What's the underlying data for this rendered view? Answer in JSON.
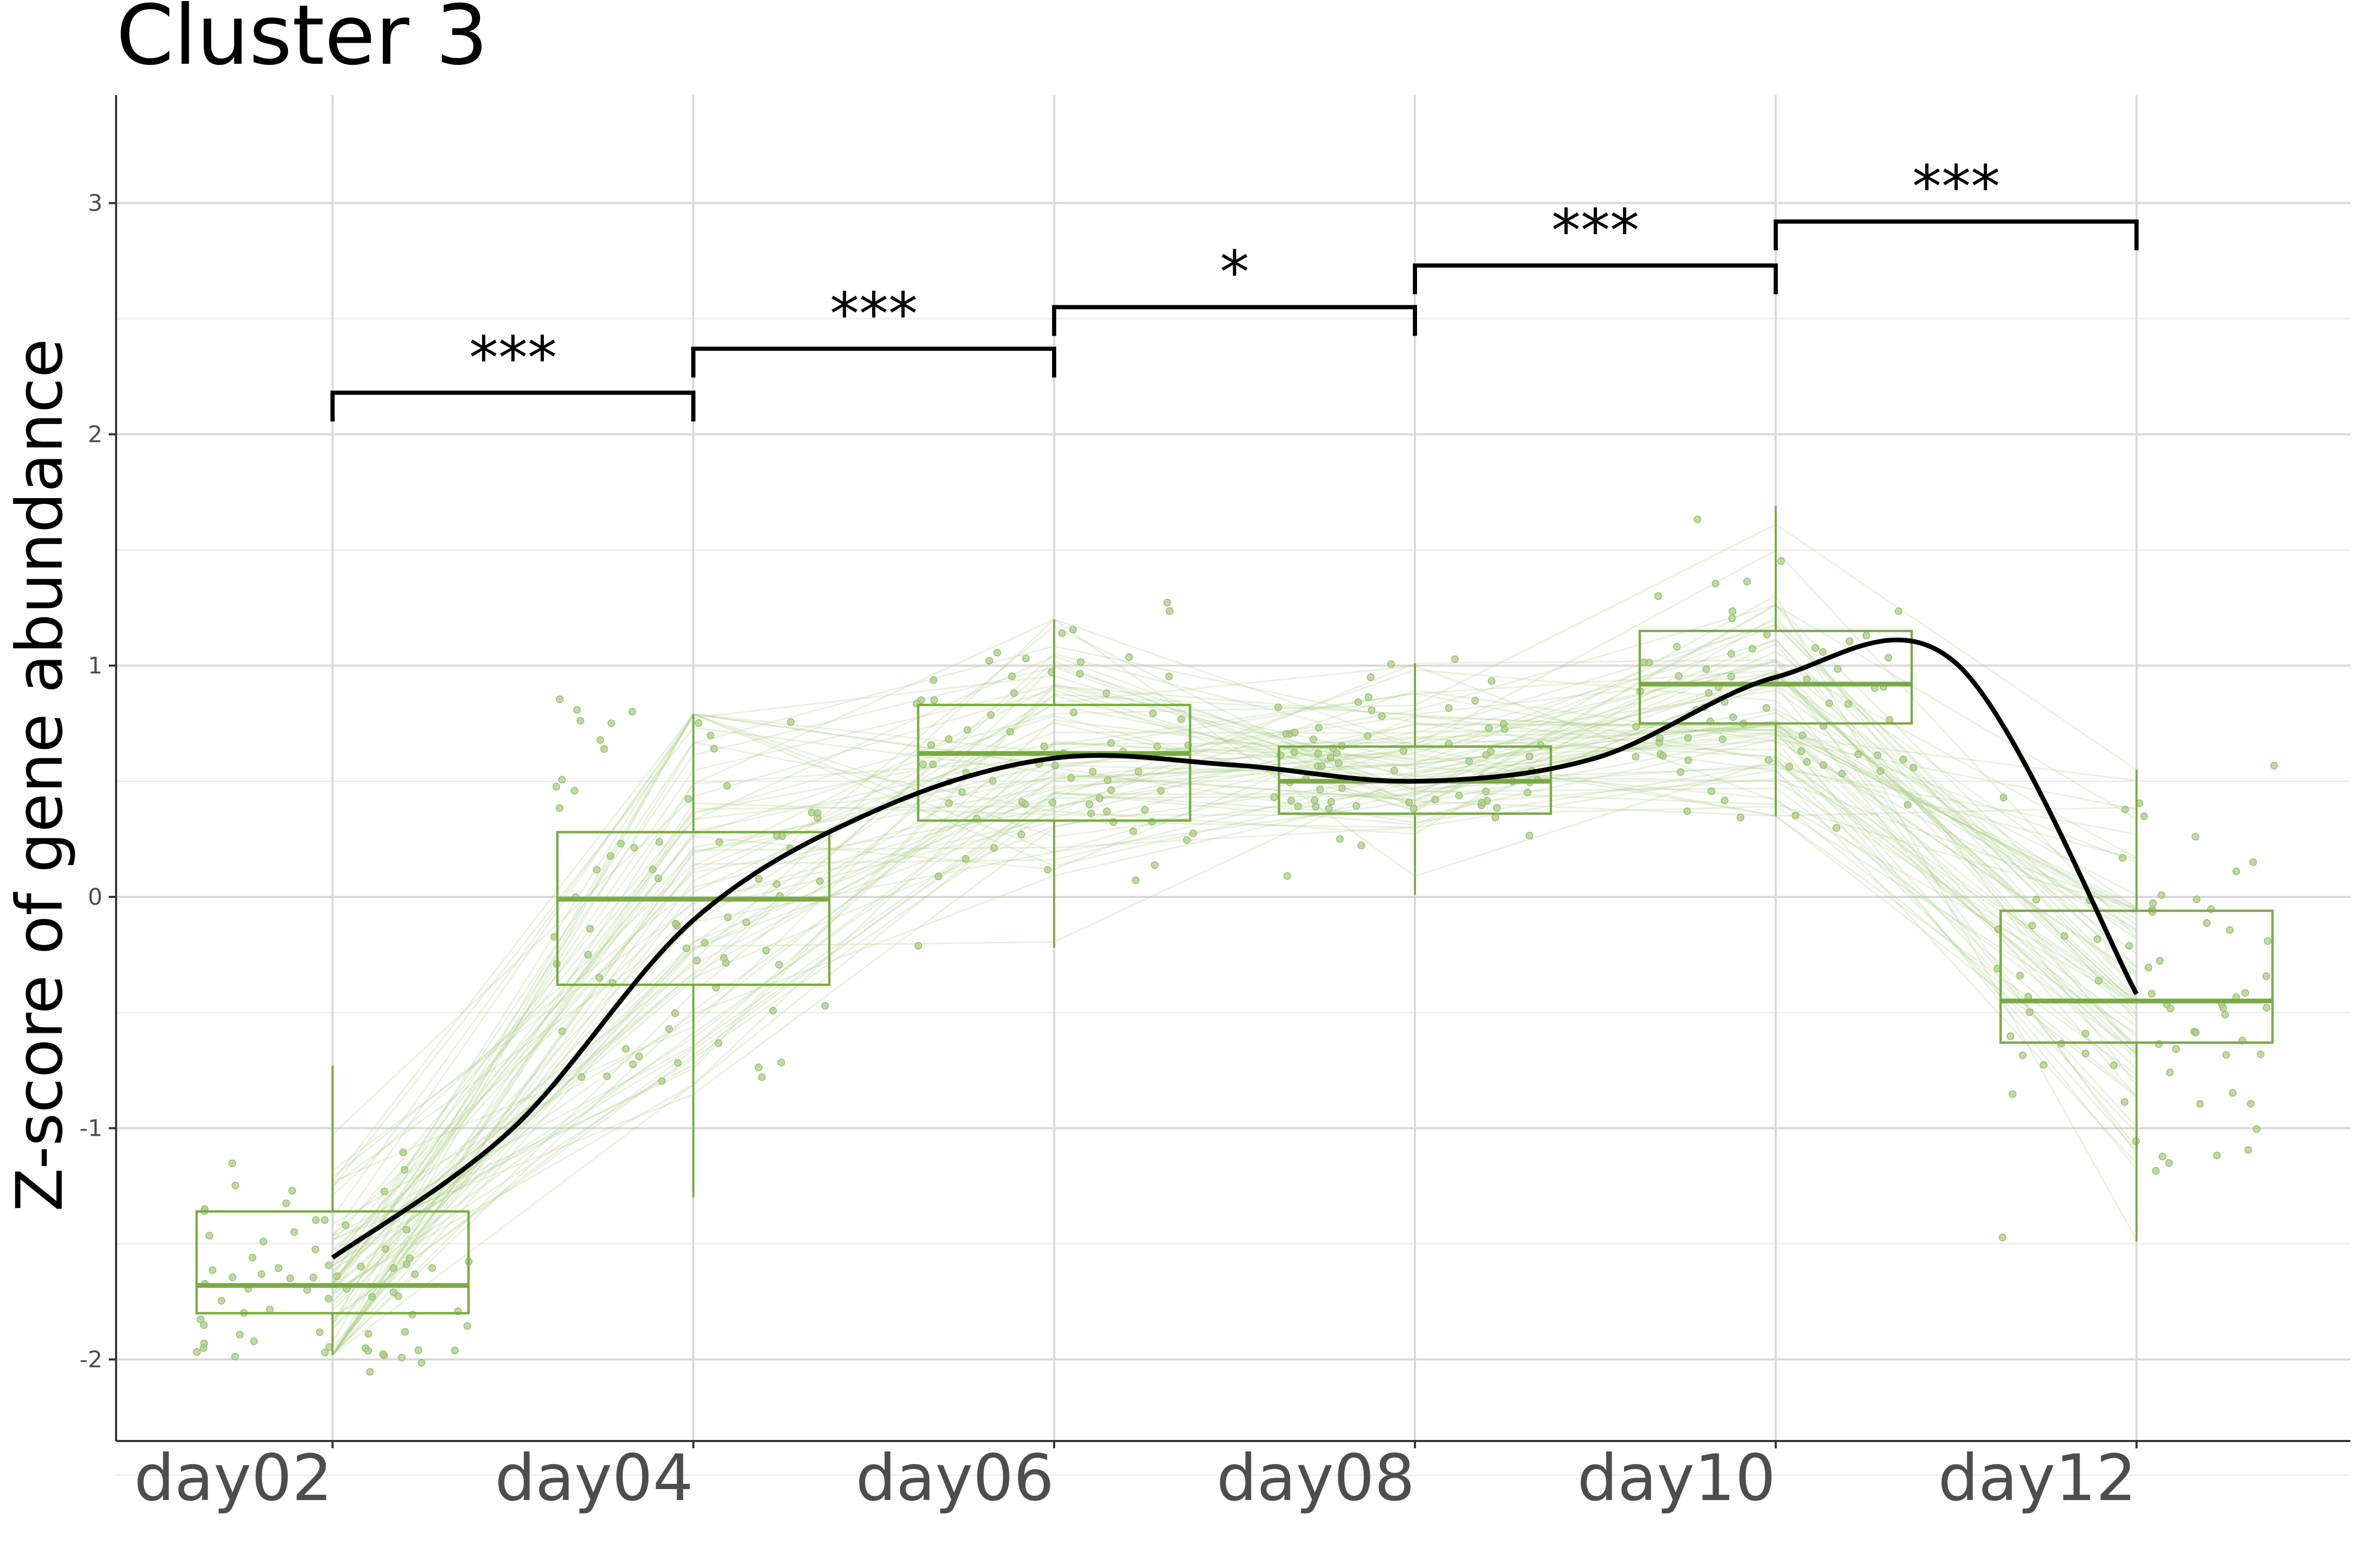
{
  "chart_data": {
    "type": "box",
    "title": "Cluster 3",
    "xlabel": "",
    "ylabel": "Z-score of gene abundance",
    "categories": [
      "day02",
      "day04",
      "day06",
      "day08",
      "day10",
      "day12"
    ],
    "y_ticks": [
      "-2",
      "-1",
      "0",
      "1",
      "2",
      "3"
    ],
    "ylim": [
      -2.35,
      3.45
    ],
    "grid": true,
    "colors": {
      "box": "#7aaa44",
      "points": "#a9cc85",
      "trend": "#000000",
      "grid_major": "#d9d9d9",
      "grid_minor": "#ececec"
    },
    "boxes": [
      {
        "category": "day02",
        "q1": -1.8,
        "median": -1.68,
        "q3": -1.36,
        "whisker_low": -1.98,
        "whisker_high": -0.73
      },
      {
        "category": "day04",
        "q1": -0.38,
        "median": -0.01,
        "q3": 0.28,
        "whisker_low": -1.3,
        "whisker_high": 0.79
      },
      {
        "category": "day06",
        "q1": 0.33,
        "median": 0.62,
        "q3": 0.83,
        "whisker_low": -0.22,
        "whisker_high": 1.2
      },
      {
        "category": "day08",
        "q1": 0.36,
        "median": 0.5,
        "q3": 0.65,
        "whisker_low": 0.01,
        "whisker_high": 1.01
      },
      {
        "category": "day10",
        "q1": 0.75,
        "median": 0.92,
        "q3": 1.15,
        "whisker_low": 0.35,
        "whisker_high": 1.69
      },
      {
        "category": "day12",
        "q1": -0.63,
        "median": -0.45,
        "q3": -0.06,
        "whisker_low": -1.49,
        "whisker_high": 0.55
      }
    ],
    "trend_line": {
      "x": [
        0,
        0.5,
        1,
        1.5,
        2,
        2.5,
        3,
        3.5,
        4,
        4.5,
        5
      ],
      "y": [
        -1.56,
        -1.0,
        -0.1,
        0.37,
        0.6,
        0.57,
        0.5,
        0.6,
        0.95,
        1.01,
        -0.42
      ]
    },
    "significance": [
      {
        "from": "day02",
        "to": "day04",
        "label": "***",
        "y": 2.18
      },
      {
        "from": "day04",
        "to": "day06",
        "label": "***",
        "y": 2.37
      },
      {
        "from": "day06",
        "to": "day08",
        "label": "*",
        "y": 2.55
      },
      {
        "from": "day08",
        "to": "day10",
        "label": "***",
        "y": 2.73
      },
      {
        "from": "day10",
        "to": "day12",
        "label": "***",
        "y": 2.92
      }
    ]
  }
}
